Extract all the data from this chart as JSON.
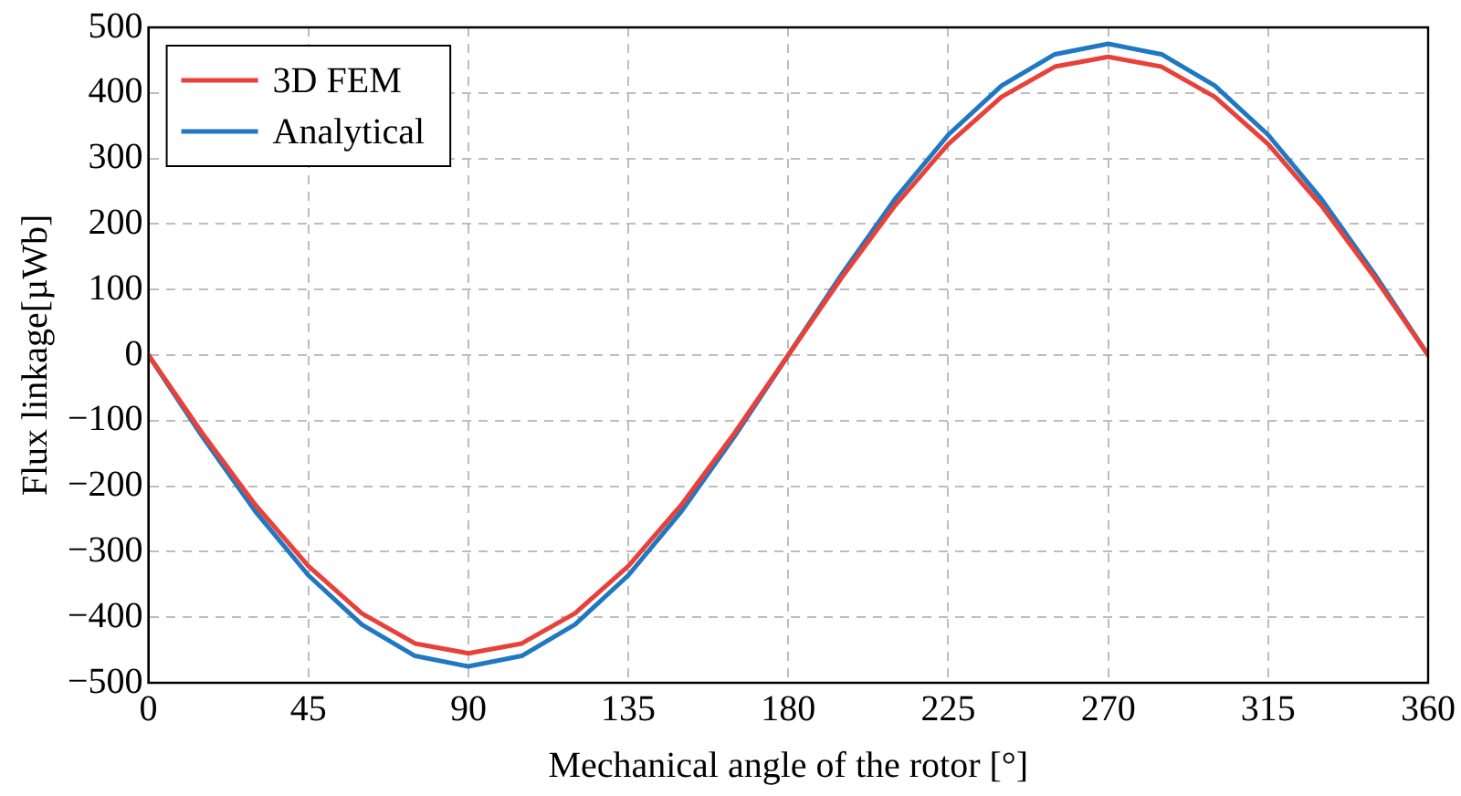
{
  "chart_data": {
    "type": "line",
    "xlabel": "Mechanical angle of the rotor [°]",
    "ylabel": "Flux linkage[µWb]",
    "x": [
      0,
      15,
      30,
      45,
      60,
      75,
      90,
      105,
      120,
      135,
      150,
      165,
      180,
      195,
      210,
      225,
      240,
      255,
      270,
      285,
      300,
      315,
      330,
      345,
      360
    ],
    "xlim": [
      0,
      360
    ],
    "xticks": [
      0,
      45,
      90,
      135,
      180,
      225,
      270,
      315,
      360
    ],
    "ylim": [
      -500,
      500
    ],
    "yticks": [
      {
        "value": -500,
        "label": "−500"
      },
      {
        "value": -400,
        "label": "−400"
      },
      {
        "value": -300,
        "label": "−300"
      },
      {
        "value": -200,
        "label": "−200"
      },
      {
        "value": -100,
        "label": "−100"
      },
      0,
      100,
      200,
      300,
      400,
      500
    ],
    "grid": true,
    "legend": "top left",
    "marker": "none",
    "line_style": "solid",
    "series": [
      {
        "name": "3D FEM",
        "color": "#e8413a",
        "values": [
          0,
          -118,
          -228,
          -322,
          -394,
          -440,
          -455,
          -440,
          -394,
          -322,
          -228,
          -118,
          0,
          118,
          228,
          322,
          394,
          440,
          455,
          440,
          394,
          322,
          228,
          118,
          0
        ]
      },
      {
        "name": "Analytical",
        "color": "#1f78c1",
        "values": [
          0,
          -123,
          -238,
          -336,
          -411,
          -459,
          -475,
          -459,
          -411,
          -336,
          -238,
          -123,
          0,
          123,
          238,
          336,
          411,
          459,
          475,
          459,
          411,
          336,
          238,
          123,
          0
        ]
      }
    ]
  }
}
